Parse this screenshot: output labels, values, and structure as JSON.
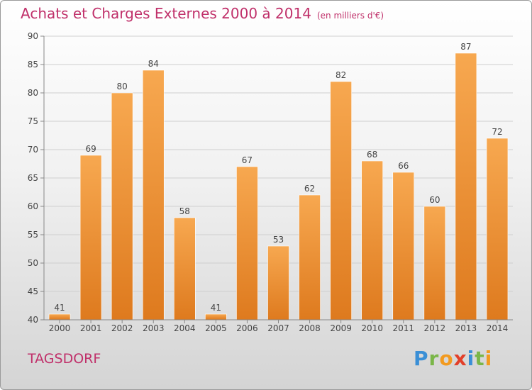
{
  "title": "Achats et Charges Externes 2000 à 2014",
  "title_unit": "(en milliers d'€)",
  "commune": "TAGSDORF",
  "logo": {
    "letters": [
      "P",
      "r",
      "o",
      "x",
      "i",
      "t",
      "i"
    ],
    "colors": [
      "#3a8fd6",
      "#7ab648",
      "#f29a1f",
      "#e2402a",
      "#3a8fd6",
      "#7ab648",
      "#f29a1f"
    ]
  },
  "colors": {
    "title": "#c0306a",
    "bar_light": "#f7a850",
    "bar_dark": "#de7a1e",
    "axis": "#888888",
    "grid": "#cfcfcf"
  },
  "chart_data": {
    "type": "bar",
    "categories": [
      "2000",
      "2001",
      "2002",
      "2003",
      "2004",
      "2005",
      "2006",
      "2007",
      "2008",
      "2009",
      "2010",
      "2011",
      "2012",
      "2013",
      "2014"
    ],
    "values": [
      41,
      69,
      80,
      84,
      58,
      41,
      67,
      53,
      62,
      82,
      68,
      66,
      60,
      87,
      72
    ],
    "ylim": [
      40,
      90
    ],
    "yticks": [
      40,
      45,
      50,
      55,
      60,
      65,
      70,
      75,
      80,
      85,
      90
    ],
    "grid": true
  }
}
